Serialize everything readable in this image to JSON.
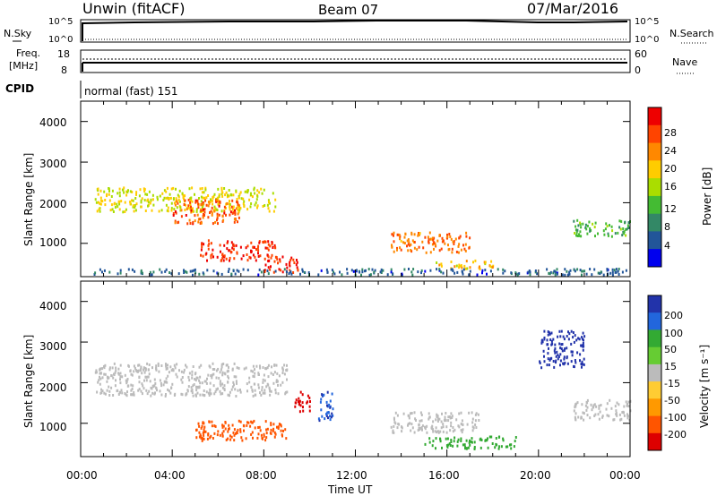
{
  "header": {
    "station": "Unwin (fitACF)",
    "beam": "Beam 07",
    "date": "07/Mar/2016"
  },
  "top_panels": {
    "nsky_label": "N.Sky",
    "nsearch_label": "N.Search",
    "exp_left_top": "10^5",
    "exp_left_bottom": "10^0",
    "exp_right_top": "10^5",
    "exp_right_bottom": "10^0",
    "freq_label_line1": "Freq.",
    "freq_label_line2": "[MHz]",
    "freq_ticks": [
      "18",
      "8"
    ],
    "nave_label": "Nave",
    "nave_ticks": [
      "60",
      "0"
    ],
    "cpid_label": "CPID",
    "cpid_value": "normal (fast) 151"
  },
  "colorbars": {
    "power": {
      "label": "Power [dB]",
      "ticks": [
        "28",
        "24",
        "20",
        "16",
        "12",
        "8",
        "4"
      ],
      "colors": [
        "#ee0000",
        "#ff4400",
        "#ff8800",
        "#ffcc00",
        "#aadd00",
        "#44bb33",
        "#338866",
        "#225599",
        "#0000ee"
      ]
    },
    "velocity": {
      "label": "Velocity [m s⁻¹]",
      "ticks": [
        "200",
        "100",
        "50",
        "15",
        "-15",
        "-50",
        "-100",
        "-200"
      ],
      "colors": [
        "#2233aa",
        "#2266dd",
        "#33aa33",
        "#66cc33",
        "#bbbbbb",
        "#ffcc33",
        "#ff9900",
        "#ff5500",
        "#dd0000"
      ]
    }
  },
  "axes": {
    "ylabel": "Slant Range [km]",
    "yticks": [
      "4000",
      "3000",
      "2000",
      "1000"
    ],
    "xlabel": "Time UT",
    "xticks": [
      "00:00",
      "04:00",
      "08:00",
      "12:00",
      "16:00",
      "20:00",
      "00:00"
    ]
  },
  "chart_data": {
    "type": "heatmap",
    "x_range_hours": [
      0,
      24
    ],
    "y_range_km": [
      180,
      4500
    ],
    "power_features": [
      {
        "x": [
          0.6,
          8.5
        ],
        "y": [
          1800,
          2400
        ],
        "value_db": 18
      },
      {
        "x": [
          4.0,
          7.0
        ],
        "y": [
          1500,
          2100
        ],
        "value_db": 26
      },
      {
        "x": [
          5.2,
          8.5
        ],
        "y": [
          600,
          1100
        ],
        "value_db": 28
      },
      {
        "x": [
          8.0,
          9.5
        ],
        "y": [
          300,
          700
        ],
        "value_db": 28
      },
      {
        "x": [
          13.5,
          17.0
        ],
        "y": [
          800,
          1300
        ],
        "value_db": 24
      },
      {
        "x": [
          15.5,
          18.0
        ],
        "y": [
          400,
          600
        ],
        "value_db": 20
      },
      {
        "x": [
          21.5,
          24.0
        ],
        "y": [
          1200,
          1600
        ],
        "value_db": 12
      },
      {
        "x": [
          0.5,
          24.0
        ],
        "y": [
          250,
          400
        ],
        "value_db": 6
      }
    ],
    "velocity_features": [
      {
        "x": [
          0.6,
          9.0
        ],
        "y": [
          1700,
          2500
        ],
        "value_ms": 0
      },
      {
        "x": [
          5.0,
          9.0
        ],
        "y": [
          600,
          1100
        ],
        "value_ms": -100
      },
      {
        "x": [
          10.3,
          11.0
        ],
        "y": [
          1100,
          1800
        ],
        "value_ms": 150
      },
      {
        "x": [
          9.3,
          10.0
        ],
        "y": [
          1300,
          1800
        ],
        "value_ms": -200
      },
      {
        "x": [
          13.5,
          17.5
        ],
        "y": [
          800,
          1300
        ],
        "value_ms": 0
      },
      {
        "x": [
          15.0,
          19.0
        ],
        "y": [
          400,
          700
        ],
        "value_ms": 40
      },
      {
        "x": [
          20.0,
          22.0
        ],
        "y": [
          2400,
          3300
        ],
        "value_ms": 180
      },
      {
        "x": [
          21.5,
          24.0
        ],
        "y": [
          1100,
          1600
        ],
        "value_ms": 0
      }
    ]
  }
}
